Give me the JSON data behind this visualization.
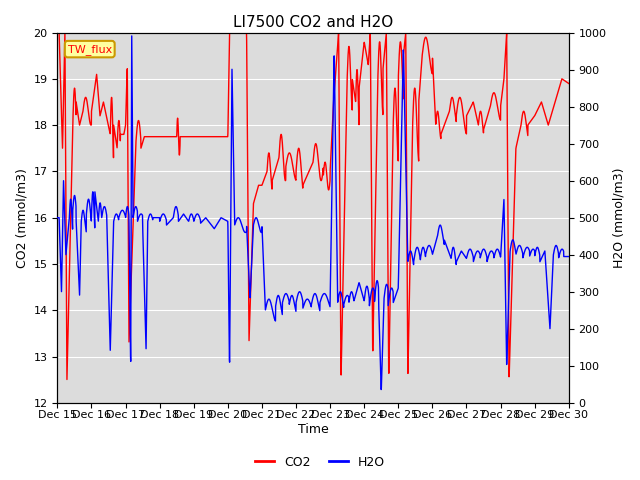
{
  "title": "LI7500 CO2 and H2O",
  "xlabel": "Time",
  "ylabel_left": "CO2 (mmol/m3)",
  "ylabel_right": "H2O (mmol/m3)",
  "xlim": [
    0,
    15
  ],
  "ylim_left": [
    12.0,
    20.0
  ],
  "ylim_right": [
    0,
    1000
  ],
  "yticks_left": [
    12.0,
    13.0,
    14.0,
    15.0,
    16.0,
    17.0,
    18.0,
    19.0,
    20.0
  ],
  "yticks_right": [
    0,
    100,
    200,
    300,
    400,
    500,
    600,
    700,
    800,
    900,
    1000
  ],
  "xtick_positions": [
    0,
    1,
    2,
    3,
    4,
    5,
    6,
    7,
    8,
    9,
    10,
    11,
    12,
    13,
    14,
    15
  ],
  "xtick_labels": [
    "Dec 15",
    "Dec 16",
    "Dec 17",
    "Dec 18",
    "Dec 19",
    "Dec 20",
    "Dec 21",
    "Dec 22",
    "Dec 23",
    "Dec 24",
    "Dec 25",
    "Dec 26",
    "Dec 27",
    "Dec 28",
    "Dec 29",
    "Dec 30"
  ],
  "co2_color": "#FF0000",
  "h2o_color": "#0000FF",
  "background_color": "#DCDCDC",
  "annotation_text": "TW_flux",
  "annotation_bg": "#FFFFA0",
  "annotation_edge": "#CC9900",
  "linewidth": 1.0,
  "title_fontsize": 11,
  "axis_label_fontsize": 9,
  "tick_fontsize": 8,
  "legend_fontsize": 9,
  "figwidth": 6.4,
  "figheight": 4.8,
  "dpi": 100
}
